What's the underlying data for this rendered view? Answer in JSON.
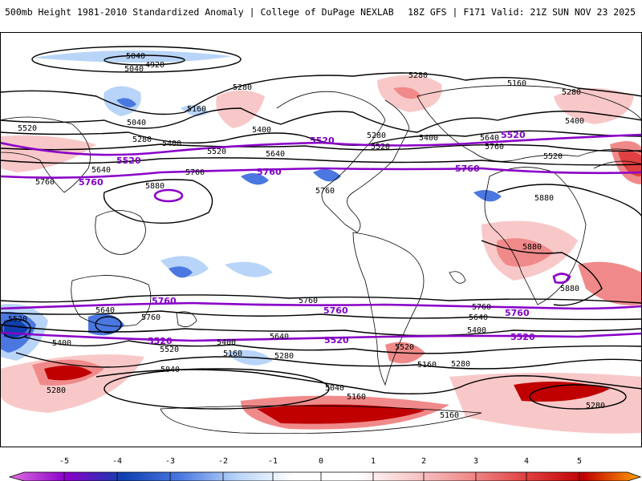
{
  "header": {
    "left_title": "500mb Height 1981-2010 Standardized Anomaly | College of DuPage NEXLAB",
    "right_title": "18Z GFS | F171 Valid: 21Z SUN NOV 23 2025"
  },
  "colorbar": {
    "ticks": [
      "-5",
      "-4",
      "-3",
      "-2",
      "-1",
      "0",
      "1",
      "2",
      "3",
      "4",
      "5"
    ],
    "colors": [
      "#e070e0",
      "#8a00c8",
      "#1040b0",
      "#4a78e0",
      "#b8d4f8",
      "#ffffff",
      "#f8c8c8",
      "#f08a8a",
      "#e04040",
      "#c00000",
      "#ffa000"
    ]
  },
  "contour_labels": {
    "c4920": "4920",
    "c5040": "5040",
    "c5160": "5160",
    "c5280": "5280",
    "c5400": "5400",
    "c5520": "5520",
    "c5640": "5640",
    "c5760": "5760",
    "c5880": "5880",
    "c5880b": "5880"
  },
  "colors": {
    "contour": "#000000",
    "highlight_contour": "#8a00c8",
    "coast": "#000000"
  }
}
